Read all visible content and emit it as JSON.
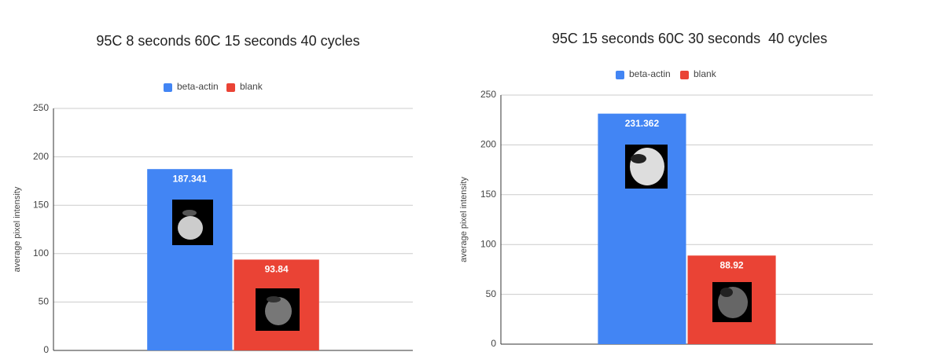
{
  "chart_data": [
    {
      "type": "bar",
      "title": "95C 8 seconds 60C 15 seconds 40 cycles",
      "y_label": "average pixel intensity",
      "categories": [
        null
      ],
      "series": [
        {
          "name": "beta-actin",
          "color": "#4285f4",
          "values": [
            187.341
          ]
        },
        {
          "name": "blank",
          "color": "#ea4335",
          "values": [
            93.84
          ]
        }
      ],
      "ylim": [
        0,
        250
      ],
      "yticks": [
        0,
        50,
        100,
        150,
        200,
        250
      ],
      "grid": true,
      "legend": "top"
    },
    {
      "type": "bar",
      "title": "95C 15 seconds 60C 30 seconds  40 cycles",
      "y_label": "average pixel intensity",
      "categories": [
        null
      ],
      "series": [
        {
          "name": "beta-actin",
          "color": "#4285f4",
          "values": [
            231.362
          ]
        },
        {
          "name": "blank",
          "color": "#ea4335",
          "values": [
            88.92
          ]
        }
      ],
      "ylim": [
        0,
        250
      ],
      "yticks": [
        0,
        50,
        100,
        150,
        200,
        250
      ],
      "grid": true,
      "legend": "top"
    }
  ]
}
